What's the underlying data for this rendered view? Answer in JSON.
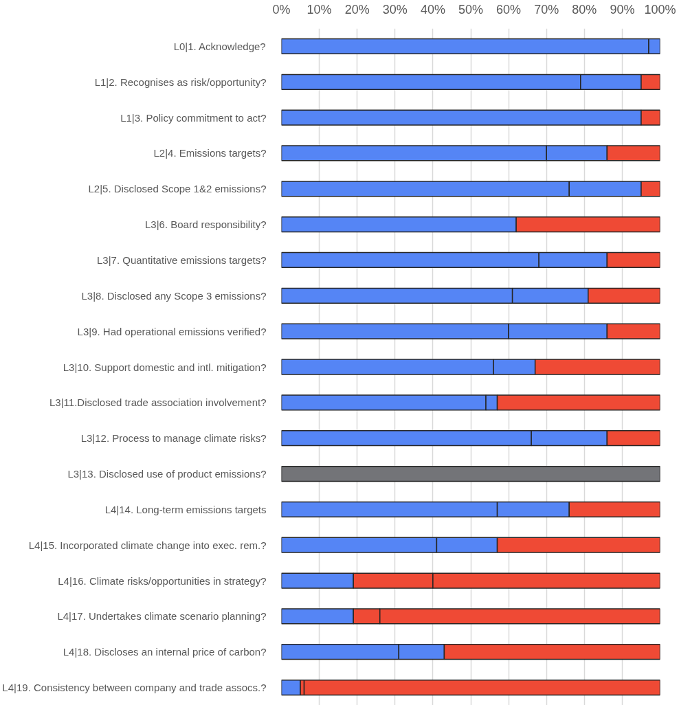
{
  "chart_data": {
    "type": "bar",
    "orientation": "horizontal",
    "stacked": true,
    "categories": [
      "L0|1. Acknowledge?",
      "L1|2. Recognises as risk/opportunity?",
      "L1|3. Policy commitment to act?",
      "L2|4. Emissions targets?",
      "L2|5. Disclosed Scope 1&2 emissions?",
      "L3|6. Board responsibility?",
      "L3|7. Quantitative emissions targets?",
      "L3|8. Disclosed any Scope 3 emissions?",
      "L3|9. Had operational emissions verified?",
      "L3|10. Support domestic and intl. mitigation?",
      "L3|11.Disclosed trade association involvement?",
      "L3|12. Process to manage climate risks?",
      "L3|13. Disclosed use of product emissions?",
      "L4|14. Long-term emissions targets",
      "L4|15. Incorporated climate change into exec. rem.?",
      "L4|16. Climate risks/opportunities in strategy?",
      "L4|17. Undertakes climate scenario planning?",
      "L4|18. Discloses an internal price of carbon?",
      "L4|19. Consistency between company and trade assocs.?"
    ],
    "series": [
      {
        "color": "#5585f5",
        "values": [
          97,
          79,
          95,
          70,
          76,
          62,
          68,
          61,
          60,
          56,
          54,
          66,
          null,
          57,
          41,
          19,
          19,
          31,
          5
        ]
      },
      {
        "color": "#ef4a35",
        "values": [
          null,
          null,
          null,
          null,
          null,
          null,
          null,
          null,
          null,
          null,
          null,
          null,
          null,
          null,
          null,
          21,
          7,
          null,
          1
        ]
      },
      {
        "color": "#5585f5",
        "values": [
          3,
          16,
          null,
          16,
          19,
          null,
          18,
          20,
          26,
          11,
          3,
          20,
          null,
          19,
          16,
          null,
          null,
          12,
          null
        ]
      },
      {
        "color": "#ef4a35",
        "values": [
          null,
          5,
          5,
          14,
          5,
          38,
          14,
          19,
          14,
          33,
          43,
          14,
          null,
          24,
          43,
          60,
          74,
          57,
          94
        ]
      },
      {
        "color": "#737478",
        "values": [
          null,
          null,
          null,
          null,
          null,
          null,
          null,
          null,
          null,
          null,
          null,
          null,
          100,
          null,
          null,
          null,
          null,
          null,
          null
        ]
      }
    ],
    "xlim": [
      0,
      100
    ],
    "xticks": [
      {
        "value": 0,
        "label": "0%"
      },
      {
        "value": 10,
        "label": "10%"
      },
      {
        "value": 20,
        "label": "20%"
      },
      {
        "value": 30,
        "label": "30%"
      },
      {
        "value": 40,
        "label": "40%"
      },
      {
        "value": 50,
        "label": "50%"
      },
      {
        "value": 60,
        "label": "60%"
      },
      {
        "value": 70,
        "label": "70%"
      },
      {
        "value": 80,
        "label": "80%"
      },
      {
        "value": 90,
        "label": "90%"
      },
      {
        "value": 100,
        "label": "100%"
      }
    ],
    "grid": "x"
  }
}
